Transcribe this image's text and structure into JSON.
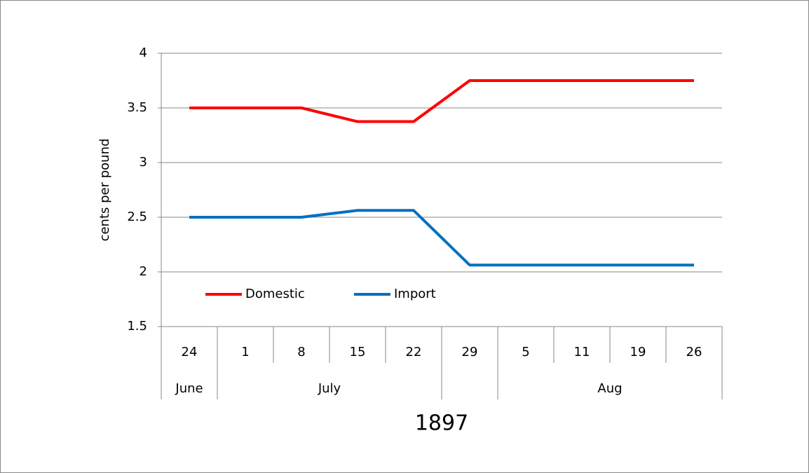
{
  "chart_data": {
    "type": "line",
    "categories": [
      "24",
      "1",
      "8",
      "15",
      "22",
      "29",
      "5",
      "11",
      "19",
      "26"
    ],
    "category_groups": [
      {
        "label": "June",
        "size": 1
      },
      {
        "label": "July",
        "size": 4
      },
      {
        "label": null,
        "size": 1
      },
      {
        "label": "Aug",
        "size": 4
      }
    ],
    "x_label": "1897",
    "y_label": "cents per pound",
    "series": [
      {
        "name": "Domestic",
        "color": "#ff0000",
        "values": [
          3.5,
          3.5,
          3.5,
          3.375,
          3.375,
          3.75,
          3.75,
          3.75,
          3.75,
          3.75
        ]
      },
      {
        "name": "Import",
        "color": "#0070c0",
        "values": [
          2.5,
          2.5,
          2.5,
          2.5625,
          2.5625,
          2.0625,
          2.0625,
          2.0625,
          2.0625,
          2.0625
        ]
      }
    ],
    "ylim": [
      1.5,
      4
    ],
    "yticks": [
      1.5,
      2,
      2.5,
      3,
      3.5,
      4
    ],
    "grid": true,
    "legend": "lower left"
  }
}
